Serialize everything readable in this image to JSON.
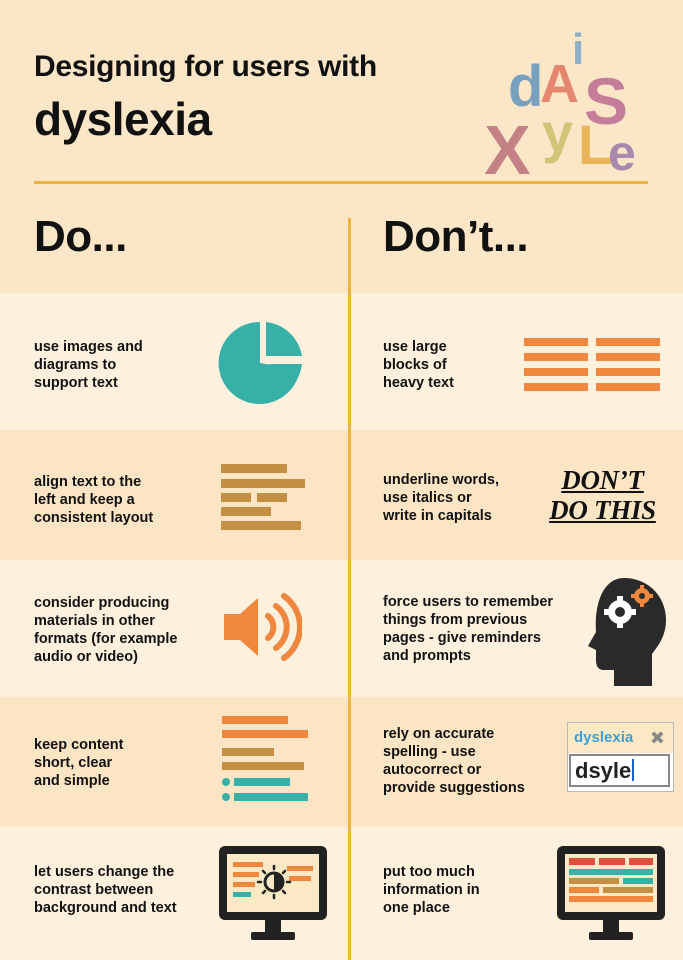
{
  "header": {
    "title_line1": "Designing for users with",
    "title_line2": "dyslexia",
    "logo_letters": [
      "d",
      "A",
      "i",
      "S",
      "X",
      "y",
      "L",
      "e"
    ]
  },
  "columns": {
    "do": "Do...",
    "dont": "Don’t..."
  },
  "rows": [
    {
      "do": "use images and\ndiagrams to\nsupport text",
      "do_icon": "pie-chart-icon",
      "dont": "use large\nblocks of\nheavy text",
      "dont_icon": "heavy-text-blocks-icon"
    },
    {
      "do": "align text to the\nleft and keep a\nconsistent layout",
      "do_icon": "left-aligned-text-icon",
      "dont": "underline words,\nuse italics or\nwrite in capitals",
      "dont_example": [
        "DON’T",
        "DO THIS"
      ]
    },
    {
      "do": "consider producing\nmaterials in other\nformats (for example\naudio or video)",
      "do_icon": "speaker-icon",
      "dont": "force users to remember\nthings from previous\npages - give reminders\nand prompts",
      "dont_icon": "head-gears-icon"
    },
    {
      "do": "keep content\nshort, clear\nand simple",
      "do_icon": "short-lines-icon",
      "dont": "rely on accurate\nspelling - use\nautocorrect or\nprovide suggestions",
      "spell": {
        "suggestion": "dyslexia",
        "typed": "dsyle"
      }
    },
    {
      "do": "let users change the\ncontrast between\nbackground and text",
      "do_icon": "contrast-monitor-icon",
      "dont": "put too much\ninformation in\none place",
      "dont_icon": "cluttered-monitor-icon"
    }
  ],
  "colors": {
    "background": "#fbe7c8",
    "accent_yellow": "#f0b43a",
    "teal": "#37b0a8",
    "orange": "#f0873e",
    "brown": "#c58f43",
    "dark": "#222222"
  }
}
